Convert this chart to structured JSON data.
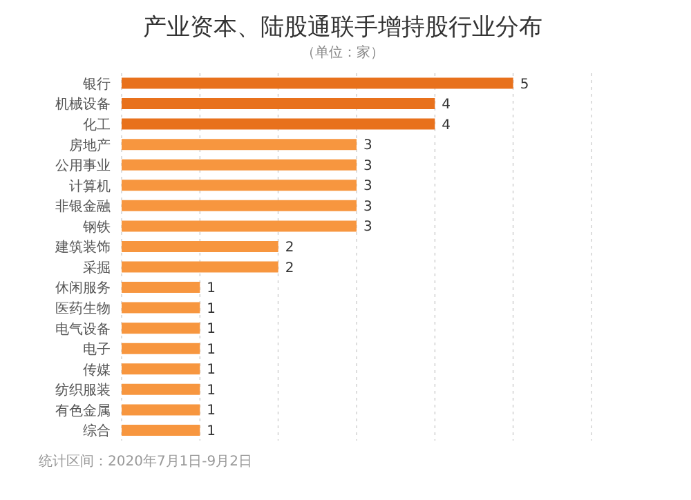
{
  "chart_data": {
    "type": "bar",
    "orientation": "horizontal",
    "title": "产业资本、陆股通联手增持股行业分布",
    "subtitle": "（单位：家）",
    "categories": [
      "银行",
      "机械设备",
      "化工",
      "房地产",
      "公用事业",
      "计算机",
      "非银金融",
      "钢铁",
      "建筑装饰",
      "采掘",
      "休闲服务",
      "医药生物",
      "电气设备",
      "电子",
      "传媒",
      "纺织服装",
      "有色金属",
      "综合"
    ],
    "values": [
      5,
      4,
      4,
      3,
      3,
      3,
      3,
      3,
      2,
      2,
      1,
      1,
      1,
      1,
      1,
      1,
      1,
      1
    ],
    "colors": [
      "#e8711c",
      "#e8711c",
      "#e8711c",
      "#f7963f",
      "#f7963f",
      "#f7963f",
      "#f7963f",
      "#f7963f",
      "#f7963f",
      "#f7963f",
      "#f7963f",
      "#f7963f",
      "#f7963f",
      "#f7963f",
      "#f7963f",
      "#f7963f",
      "#f7963f",
      "#f7963f"
    ],
    "xlim": [
      0,
      6
    ],
    "xticks": [
      0,
      1,
      2,
      3,
      4,
      5,
      6
    ],
    "tick_labels": "y",
    "grid": "x",
    "data_labels": true,
    "annotations": [
      "统计区间：2020年7月1日-9月2日"
    ]
  }
}
